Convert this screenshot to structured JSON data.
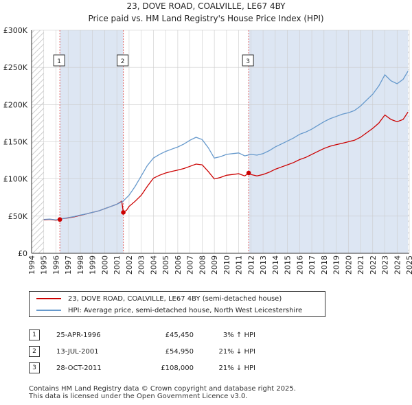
{
  "title": {
    "line1": "23, DOVE ROAD, COALVILLE, LE67 4BY",
    "line2": "Price paid vs. HM Land Registry's House Price Index (HPI)"
  },
  "colors": {
    "price_line": "#cc0000",
    "hpi_line": "#6699cc",
    "shade": "#dde6f3",
    "grid": "#cccccc",
    "marker_vline": "#e06060"
  },
  "chart_data": {
    "type": "line",
    "title": "Price paid vs. HM Land Registry's House Price Index (HPI)",
    "xlabel": "",
    "ylabel": "",
    "xlim": [
      1994,
      2025
    ],
    "ylim": [
      0,
      300000
    ],
    "x_ticks": [
      "1994",
      "1995",
      "1996",
      "1997",
      "1998",
      "1999",
      "2000",
      "2001",
      "2002",
      "2003",
      "2004",
      "2005",
      "2006",
      "2007",
      "2008",
      "2009",
      "2010",
      "2011",
      "2012",
      "2013",
      "2014",
      "2015",
      "2016",
      "2017",
      "2018",
      "2019",
      "2020",
      "2021",
      "2022",
      "2023",
      "2024",
      "2025"
    ],
    "y_ticks": [
      {
        "value": 0,
        "label": "£0"
      },
      {
        "value": 50000,
        "label": "£50K"
      },
      {
        "value": 100000,
        "label": "£100K"
      },
      {
        "value": 150000,
        "label": "£150K"
      },
      {
        "value": 200000,
        "label": "£200K"
      },
      {
        "value": 250000,
        "label": "£250K"
      },
      {
        "value": 300000,
        "label": "£300K"
      }
    ],
    "hatched_ranges": [
      [
        1994,
        1995
      ],
      [
        2024.9,
        2025
      ]
    ],
    "shaded_ranges": [
      [
        1996.32,
        2001.53
      ],
      [
        2011.82,
        2025
      ]
    ],
    "series": [
      {
        "name": "23, DOVE ROAD, COALVILLE, LE67 4BY (semi-detached house)",
        "x": [
          1995,
          1995.5,
          1996,
          1996.32,
          1996.5,
          1997,
          1997.5,
          1998,
          1998.5,
          1999,
          1999.5,
          2000,
          2000.5,
          2001,
          2001.4,
          2001.53,
          2001.8,
          2002,
          2002.5,
          2003,
          2003.5,
          2004,
          2004.5,
          2005,
          2005.5,
          2006,
          2006.5,
          2007,
          2007.5,
          2008,
          2008.5,
          2009,
          2009.5,
          2010,
          2010.5,
          2011,
          2011.5,
          2011.82,
          2012,
          2012.5,
          2013,
          2013.5,
          2014,
          2014.5,
          2015,
          2015.5,
          2016,
          2016.5,
          2017,
          2017.5,
          2018,
          2018.5,
          2019,
          2019.5,
          2020,
          2020.5,
          2021,
          2021.5,
          2022,
          2022.5,
          2023,
          2023.5,
          2024,
          2024.5,
          2024.9
        ],
        "values": [
          45000,
          45500,
          44500,
          45450,
          46500,
          47500,
          49000,
          51000,
          53000,
          55000,
          57000,
          60000,
          63000,
          66000,
          70000,
          54950,
          58000,
          63000,
          70000,
          78000,
          90000,
          101000,
          105000,
          108000,
          110000,
          112000,
          114000,
          117000,
          120000,
          119000,
          110000,
          100000,
          102000,
          105000,
          106000,
          107000,
          104000,
          108000,
          106000,
          104000,
          106000,
          109000,
          113000,
          116000,
          119000,
          122000,
          126000,
          129000,
          133000,
          137000,
          141000,
          144000,
          146000,
          148000,
          150000,
          152000,
          156000,
          162000,
          168000,
          175000,
          186000,
          180000,
          177000,
          180000,
          190000
        ]
      },
      {
        "name": "HPI: Average price, semi-detached house, North West Leicestershire",
        "x": [
          1995,
          1995.5,
          1996,
          1996.5,
          1997,
          1997.5,
          1998,
          1998.5,
          1999,
          1999.5,
          2000,
          2000.5,
          2001,
          2001.5,
          2002,
          2002.5,
          2003,
          2003.5,
          2004,
          2004.5,
          2005,
          2005.5,
          2006,
          2006.5,
          2007,
          2007.5,
          2008,
          2008.5,
          2009,
          2009.5,
          2010,
          2010.5,
          2011,
          2011.5,
          2012,
          2012.5,
          2013,
          2013.5,
          2014,
          2014.5,
          2015,
          2015.5,
          2016,
          2016.5,
          2017,
          2017.5,
          2018,
          2018.5,
          2019,
          2019.5,
          2020,
          2020.5,
          2021,
          2021.5,
          2022,
          2022.5,
          2023,
          2023.5,
          2024,
          2024.5,
          2024.9
        ],
        "values": [
          45500,
          46000,
          45000,
          46500,
          48000,
          49500,
          51500,
          53000,
          55000,
          57000,
          60000,
          63000,
          66000,
          70000,
          78000,
          90000,
          104000,
          118000,
          128000,
          133000,
          137000,
          140000,
          143000,
          147000,
          152000,
          156000,
          153000,
          142000,
          128000,
          130000,
          133000,
          134000,
          135000,
          131000,
          133000,
          132000,
          134000,
          138000,
          143000,
          147000,
          151000,
          155000,
          160000,
          163000,
          167000,
          172000,
          177000,
          181000,
          184000,
          187000,
          189000,
          192000,
          198000,
          206000,
          214000,
          225000,
          240000,
          232000,
          228000,
          234000,
          245000
        ]
      }
    ],
    "sale_markers": [
      {
        "label": "1",
        "x": 1996.32,
        "value": 45450
      },
      {
        "label": "2",
        "x": 2001.53,
        "value": 54950
      },
      {
        "label": "3",
        "x": 2011.82,
        "value": 108000
      }
    ]
  },
  "legend": [
    {
      "label": "23, DOVE ROAD, COALVILLE, LE67 4BY (semi-detached house)"
    },
    {
      "label": "HPI: Average price, semi-detached house, North West Leicestershire"
    }
  ],
  "sales": [
    {
      "num": "1",
      "date": "25-APR-1996",
      "price": "£45,450",
      "hpi": "3% ↑ HPI"
    },
    {
      "num": "2",
      "date": "13-JUL-2001",
      "price": "£54,950",
      "hpi": "21% ↓ HPI"
    },
    {
      "num": "3",
      "date": "28-OCT-2011",
      "price": "£108,000",
      "hpi": "21% ↓ HPI"
    }
  ],
  "footer": {
    "line1": "Contains HM Land Registry data © Crown copyright and database right 2025.",
    "line2": "This data is licensed under the Open Government Licence v3.0."
  }
}
